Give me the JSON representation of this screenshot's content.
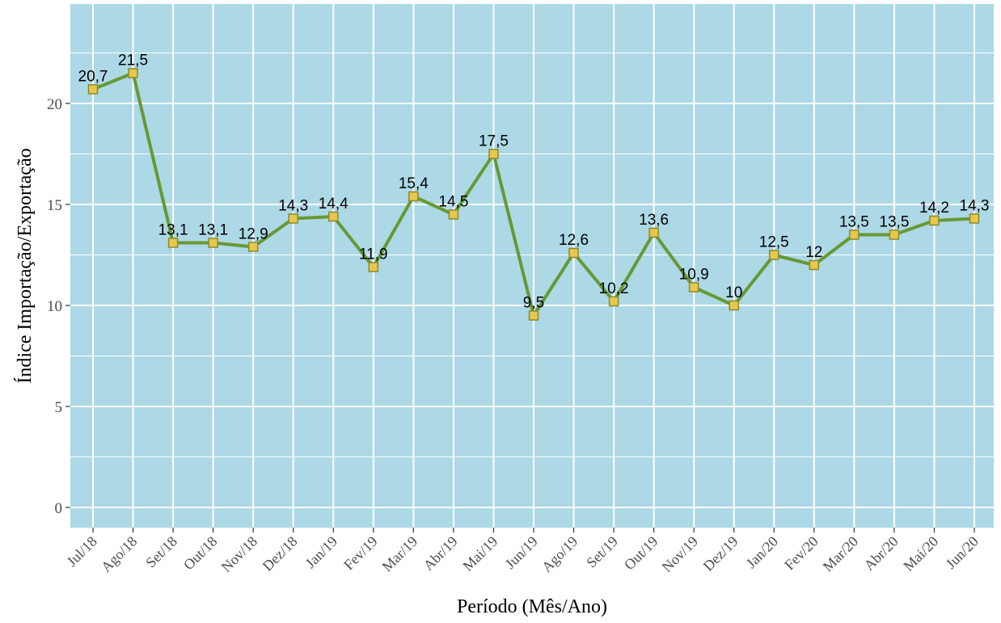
{
  "chart_data": {
    "type": "line",
    "x_label": "Período (Mês/Ano)",
    "y_label": "Índice Importação/Exportação",
    "categories": [
      "Jul/18",
      "Ago/18",
      "Set/18",
      "Out/18",
      "Nov/18",
      "Dez/18",
      "Jan/19",
      "Fev/19",
      "Mar/19",
      "Abr/19",
      "Mai/19",
      "Jun/19",
      "Ago/19",
      "Set/19",
      "Out/19",
      "Nov/19",
      "Dez/19",
      "Jan/20",
      "Fev/20",
      "Mar/20",
      "Abr/20",
      "Mai/20",
      "Jun/20"
    ],
    "series": [
      {
        "color": "#669933",
        "values": [
          20.7,
          21.5,
          13.1,
          13.1,
          12.9,
          14.3,
          14.4,
          11.9,
          15.4,
          14.5,
          17.5,
          9.5,
          12.6,
          10.2,
          13.6,
          10.9,
          10,
          12.5,
          12,
          13.5,
          13.5,
          14.2,
          14.3
        ],
        "value_labels": [
          "20,7",
          "21,5",
          "13,1",
          "13,1",
          "12,9",
          "14,3",
          "14,4",
          "11,9",
          "15,4",
          "14,5",
          "17,5",
          "9,5",
          "12,6",
          "10,2",
          "13,6",
          "10,9",
          "10",
          "12,5",
          "12",
          "13,5",
          "13,5",
          "14,2",
          "14,3"
        ]
      }
    ],
    "marker_color": "#e6c84e",
    "ylim": [
      -1.0,
      24.92
    ],
    "yticks": [
      0,
      5,
      10,
      15,
      20
    ],
    "grid": true,
    "background": "#add8e6"
  }
}
